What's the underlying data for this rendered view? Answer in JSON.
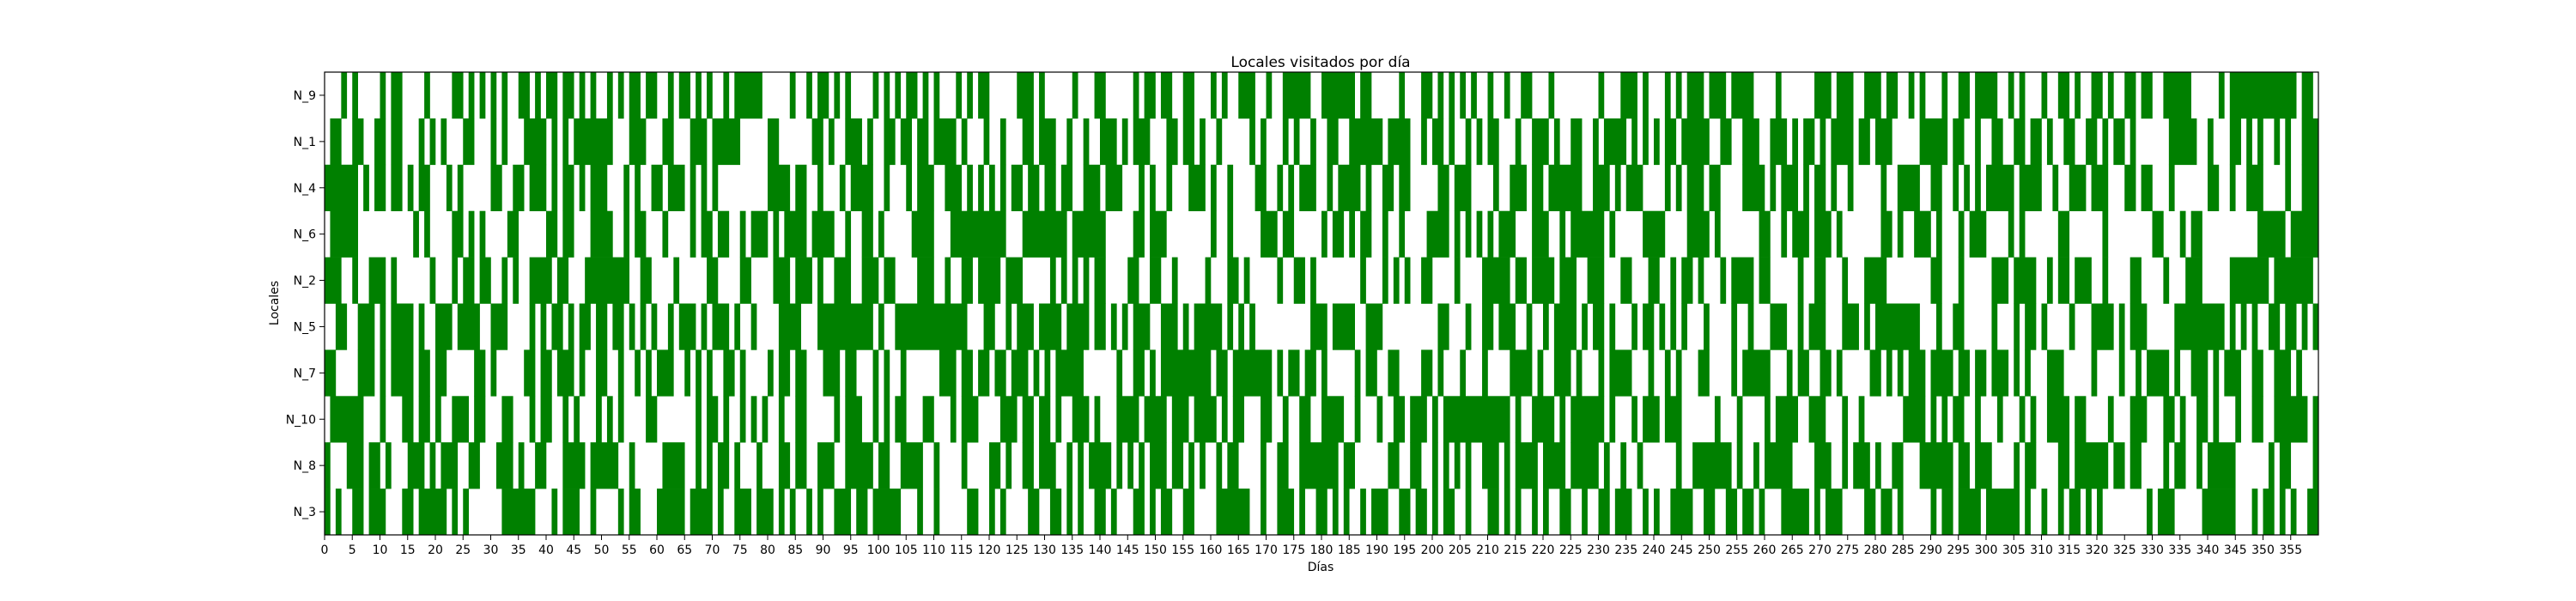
{
  "chart_data": {
    "type": "heatmap",
    "title": "Locales visitados por día",
    "xlabel": "Días",
    "ylabel": "Locales",
    "rows": [
      "N_9",
      "N_1",
      "N_4",
      "N_6",
      "N_2",
      "N_5",
      "N_7",
      "N_10",
      "N_8",
      "N_3"
    ],
    "x_range": [
      0,
      360
    ],
    "x_ticks": [
      0,
      5,
      10,
      15,
      20,
      25,
      30,
      35,
      40,
      45,
      50,
      55,
      60,
      65,
      70,
      75,
      80,
      85,
      90,
      95,
      100,
      105,
      110,
      115,
      120,
      125,
      130,
      135,
      140,
      145,
      150,
      155,
      160,
      165,
      170,
      175,
      180,
      185,
      190,
      195,
      200,
      205,
      210,
      215,
      220,
      225,
      230,
      235,
      240,
      245,
      250,
      255,
      260,
      265,
      270,
      275,
      280,
      285,
      290,
      295,
      300,
      305,
      310,
      315,
      320,
      325,
      330,
      335,
      340,
      345,
      350,
      355
    ],
    "fill_color": "#008000",
    "empty_color": "#ffffff",
    "visit_probability": 0.5,
    "grid": false,
    "legend": "none"
  }
}
